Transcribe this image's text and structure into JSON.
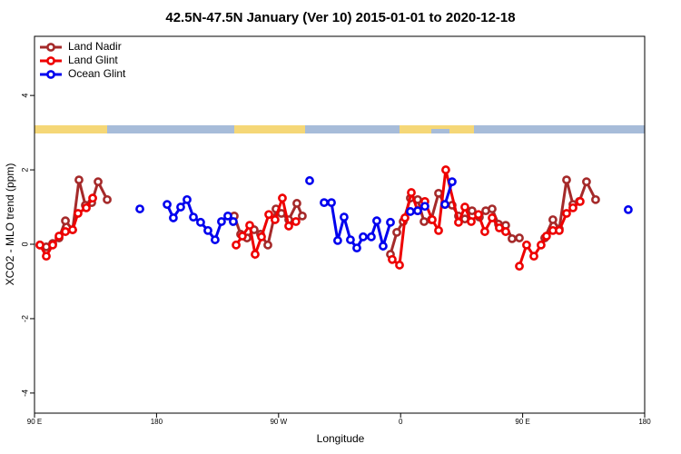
{
  "chart_data": {
    "type": "line",
    "title": "42.5N-47.5N January (Ver 10)   2015-01-01 to 2020-12-18",
    "x_label": "Longitude",
    "y_label": "XCO2 - MLO trend (ppm)",
    "xlim": [
      90,
      540
    ],
    "ylim": [
      -4.54,
      5.59
    ],
    "xticks": [
      {
        "value": 90,
        "label": "90 E"
      },
      180,
      {
        "value": 270,
        "label": "90 W"
      },
      {
        "value": 360,
        "label": "0"
      },
      {
        "value": 450,
        "label": "90 E"
      },
      {
        "value": 540,
        "label": "180"
      }
    ],
    "yticks": [
      -4,
      -2,
      0,
      2,
      4
    ],
    "legend": "top-left",
    "series": [
      {
        "name": "Land Nadir",
        "color": "#a52a2a",
        "x": [
          94.0,
          98.7,
          103.4,
          108.1,
          112.8,
          118.1,
          122.8,
          127.5,
          132.2,
          136.9,
          143.6,
          null,
          237.3,
          242.0,
          246.7,
          252.0,
          256.7,
          262.1,
          268.1,
          272.1,
          277.5,
          283.5,
          287.5,
          null,
          352.5,
          357.2,
          361.9,
          367.2,
          372.6,
          377.3,
          382.6,
          388.0,
          392.7,
          398.0,
          402.7,
          407.4,
          412.7,
          418.1,
          422.8,
          427.5,
          432.2,
          437.5,
          442.2,
          447.6,
          null,
          466.3,
          472.3,
          477.0,
          482.4,
          487.1,
          491.8,
          497.1,
          503.8
        ],
        "values": [
          -0.02,
          -0.07,
          0.02,
          0.17,
          0.63,
          0.39,
          1.73,
          1.05,
          1.12,
          1.68,
          1.2,
          null,
          0.76,
          0.27,
          0.17,
          0.39,
          0.27,
          -0.02,
          0.95,
          0.83,
          0.66,
          1.1,
          0.76,
          null,
          -0.27,
          0.32,
          0.61,
          1.24,
          1.2,
          0.61,
          0.66,
          1.37,
          1.07,
          1.05,
          0.76,
          0.68,
          0.9,
          0.73,
          0.9,
          0.95,
          0.54,
          0.51,
          0.15,
          0.17,
          null,
          0.17,
          0.66,
          0.41,
          1.73,
          1.07,
          1.15,
          1.68,
          1.2
        ]
      },
      {
        "name": "Land Glint",
        "color": "#ee0000",
        "x": [
          94.0,
          98.7,
          103.4,
          108.1,
          112.8,
          118.1,
          122.1,
          128.2,
          132.9,
          null,
          238.7,
          243.3,
          248.7,
          252.7,
          257.4,
          262.8,
          267.4,
          272.8,
          277.5,
          282.8,
          null,
          353.8,
          359.2,
          363.2,
          367.9,
          372.6,
          377.9,
          383.3,
          388.0,
          393.3,
          402.7,
          407.4,
          412.1,
          417.4,
          422.1,
          427.5,
          432.8,
          437.5,
          null,
          447.6,
          452.9,
          458.3,
          463.6,
          467.6,
          472.3,
          477.0,
          482.4,
          487.1,
          492.4
        ],
        "values": [
          -0.02,
          -0.32,
          -0.02,
          0.22,
          0.34,
          0.39,
          0.83,
          0.98,
          1.24,
          null,
          -0.02,
          0.22,
          0.51,
          -0.27,
          0.2,
          0.8,
          0.66,
          1.24,
          0.49,
          0.61,
          null,
          -0.41,
          -0.56,
          0.71,
          1.39,
          0.9,
          1.15,
          0.66,
          0.37,
          2.0,
          0.59,
          1.0,
          0.61,
          0.8,
          0.34,
          0.71,
          0.44,
          0.34,
          null,
          -0.59,
          -0.02,
          -0.32,
          -0.02,
          0.22,
          0.37,
          0.37,
          0.83,
          0.98,
          1.15
        ]
      },
      {
        "name": "Ocean Glint",
        "color": "#0000ee",
        "x": [
          167.7,
          null,
          187.8,
          192.4,
          197.8,
          202.5,
          207.2,
          212.5,
          217.9,
          223.2,
          227.9,
          232.6,
          236.6,
          null,
          292.9,
          null,
          303.6,
          309.0,
          313.6,
          318.3,
          323.0,
          327.7,
          332.4,
          338.4,
          342.4,
          347.1,
          352.5,
          null,
          367.2,
          372.6,
          377.9,
          null,
          392.7,
          398.0,
          null,
          527.9
        ],
        "values": [
          0.95,
          null,
          1.07,
          0.71,
          1.0,
          1.2,
          0.73,
          0.59,
          0.37,
          0.12,
          0.61,
          0.76,
          0.61,
          null,
          1.71,
          null,
          1.12,
          1.12,
          0.1,
          0.73,
          0.12,
          -0.1,
          0.2,
          0.2,
          0.63,
          -0.05,
          0.59,
          null,
          0.88,
          0.9,
          1.02,
          null,
          1.07,
          1.68,
          null,
          0.93
        ]
      }
    ]
  }
}
